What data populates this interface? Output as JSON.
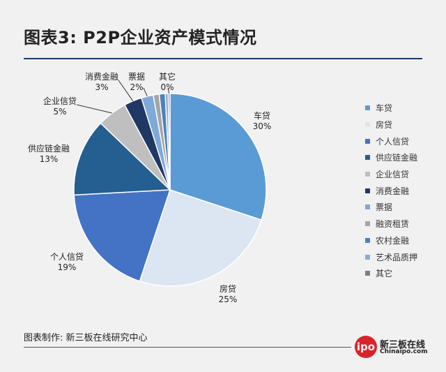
{
  "header": {
    "title": "图表3: P2P企业资产模式情况"
  },
  "chart_data": {
    "type": "pie",
    "categories": [
      "车贷",
      "房贷",
      "个人信贷",
      "供应链金融",
      "企业信贷",
      "消费金融",
      "票据",
      "融资租赁",
      "农村金融",
      "艺术品质押",
      "其它"
    ],
    "values": [
      30,
      25,
      19,
      13,
      5,
      3,
      2,
      1,
      1,
      0.5,
      0.3
    ],
    "labels": [
      {
        "name": "车贷",
        "pct": "30%"
      },
      {
        "name": "房贷",
        "pct": "25%"
      },
      {
        "name": "个人信贷",
        "pct": "19%"
      },
      {
        "name": "供应链金融",
        "pct": "13%"
      },
      {
        "name": "企业信贷",
        "pct": "5%"
      },
      {
        "name": "消费金融",
        "pct": "3%"
      },
      {
        "name": "票据",
        "pct": "2%"
      },
      {
        "name": "其它",
        "pct": "0%"
      }
    ],
    "colors": [
      "#5b9bd5",
      "#dce6f2",
      "#4472c4",
      "#255e91",
      "#bfbfbf",
      "#203864",
      "#7fa9d9",
      "#a5a5a5",
      "#4f81bd",
      "#8eaadb",
      "#7f7f7f"
    ],
    "legend_position": "right"
  },
  "footer": {
    "source": "图表制作: 新三板在线研究中心",
    "logo_badge": "ipo",
    "logo_name": "新三板在线",
    "logo_url": "Chinaipo.com"
  }
}
